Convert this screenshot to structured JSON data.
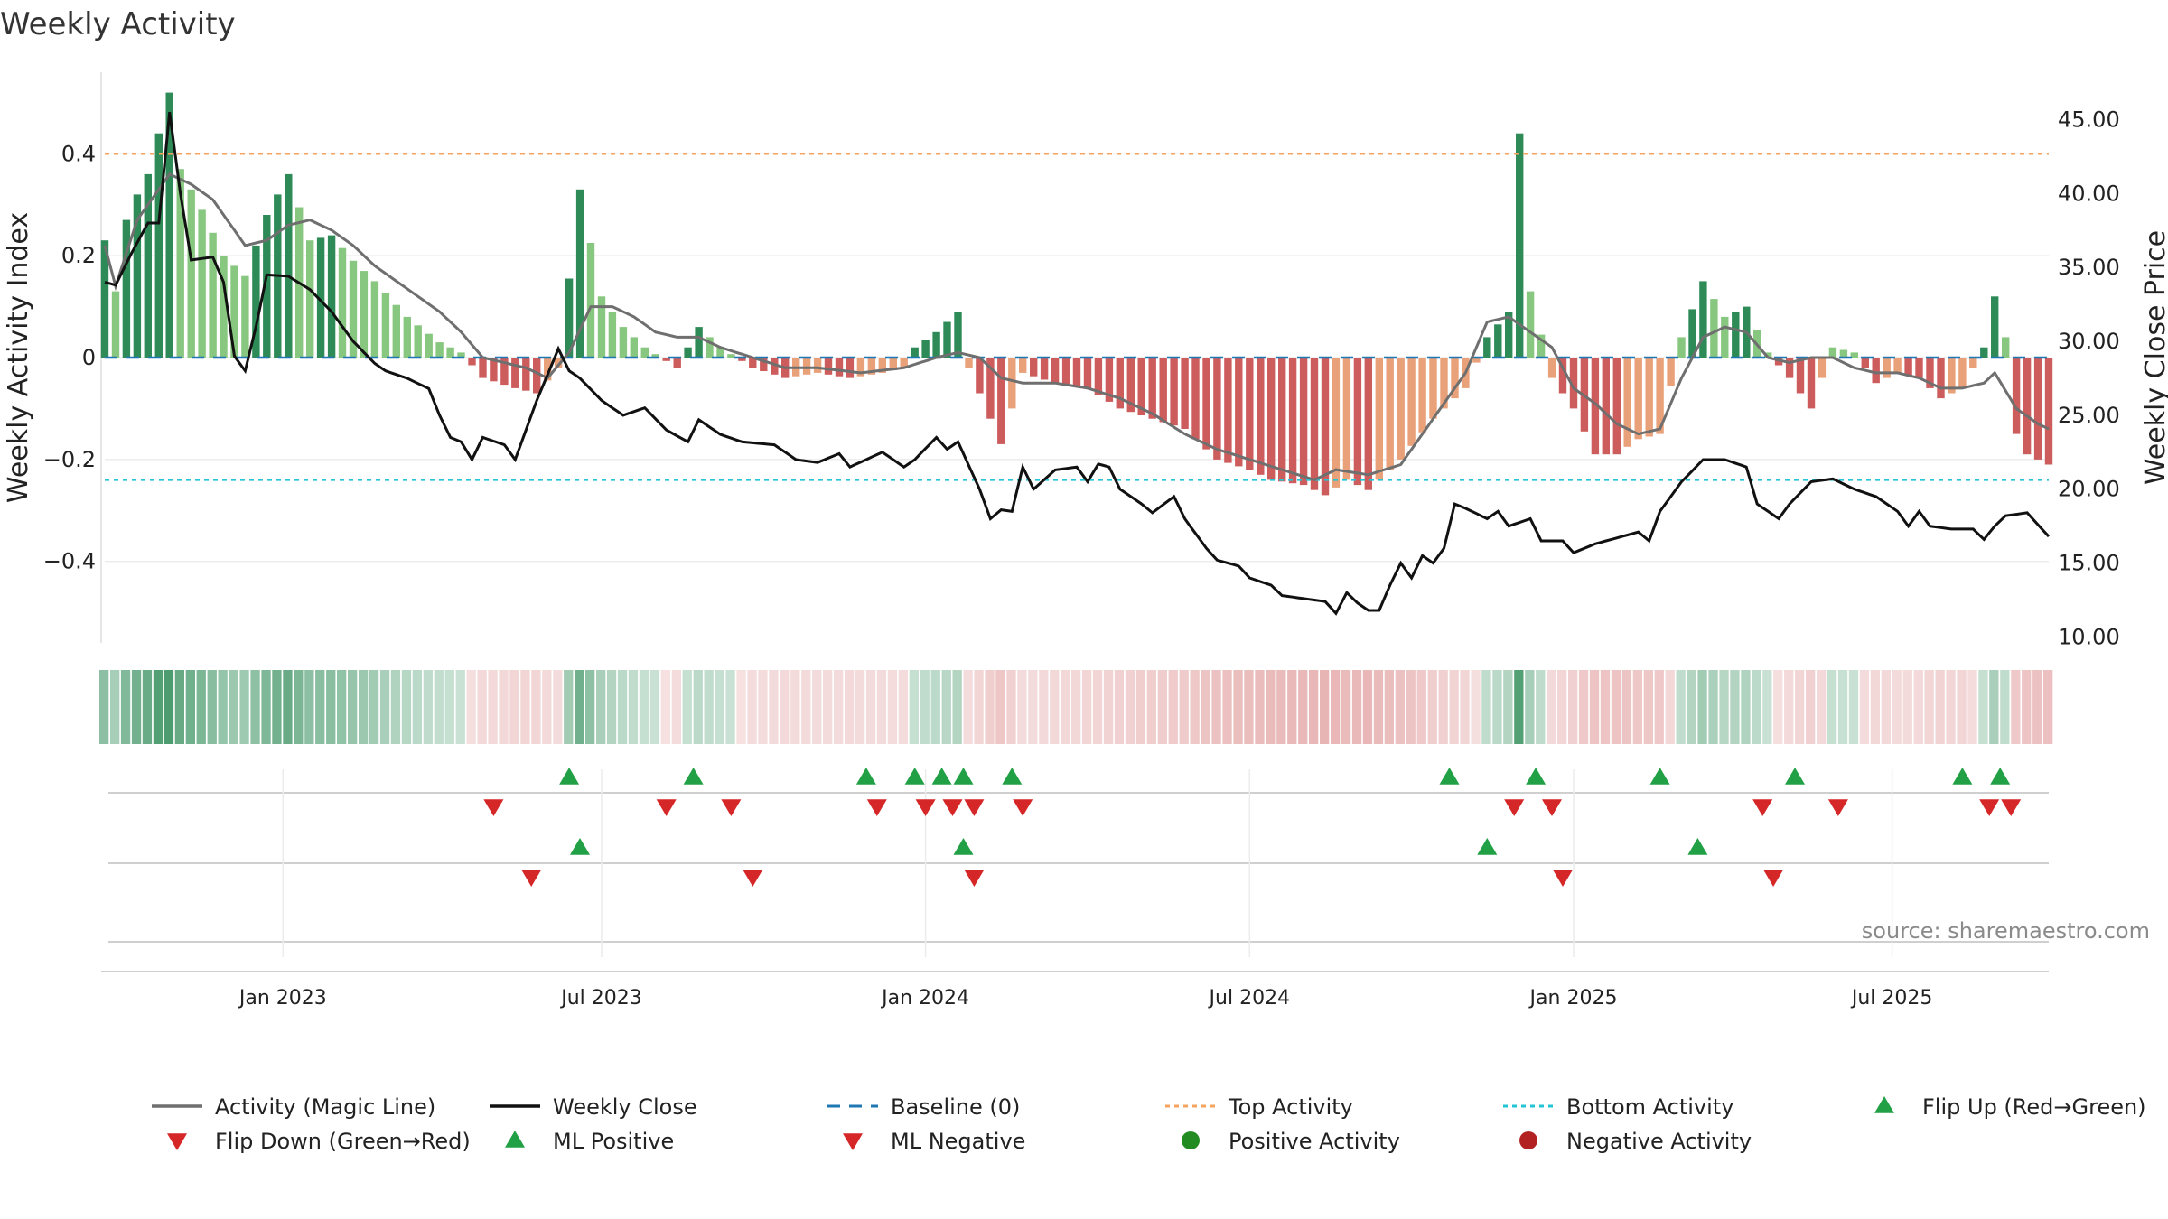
{
  "chart_data": {
    "type": "bar+line",
    "title": "Weekly Activity",
    "ylabel_left": "Weekly Activity Index",
    "ylabel_right": "Weekly Close Price",
    "source": "source: sharemaestro.com",
    "y_left_ticks": [
      "0.4",
      "0.2",
      "0",
      "−0.2",
      "−0.4"
    ],
    "y_left_tick_values": [
      0.4,
      0.2,
      0,
      -0.2,
      -0.4
    ],
    "y_left_range": [
      -0.56,
      0.56
    ],
    "y_right_ticks": [
      "45.00",
      "40.00",
      "35.00",
      "30.00",
      "25.00",
      "20.00",
      "15.00",
      "10.00"
    ],
    "y_right_tick_values": [
      45,
      40,
      35,
      30,
      25,
      20,
      15,
      10
    ],
    "y_right_range": [
      9.6,
      48.2
    ],
    "x_ticks": [
      "Jan 2023",
      "Jul 2023",
      "Jan 2024",
      "Jul 2024",
      "Jan 2025",
      "Jul 2025"
    ],
    "x_tick_weeks": [
      33,
      92,
      152,
      212,
      272,
      331
    ],
    "weeks": 360,
    "top_activity": 0.4,
    "bottom_activity": -0.24,
    "activity_anchors": [
      [
        0,
        0.23
      ],
      [
        2,
        0.13
      ],
      [
        4,
        0.27
      ],
      [
        6,
        0.32
      ],
      [
        8,
        0.36
      ],
      [
        12,
        0.52
      ],
      [
        14,
        0.37
      ],
      [
        18,
        0.29
      ],
      [
        22,
        0.2
      ],
      [
        26,
        0.16
      ],
      [
        30,
        0.28
      ],
      [
        34,
        0.36
      ],
      [
        38,
        0.23
      ],
      [
        42,
        0.24
      ],
      [
        46,
        0.19
      ],
      [
        50,
        0.15
      ],
      [
        56,
        0.08
      ],
      [
        62,
        0.03
      ],
      [
        66,
        0.01
      ],
      [
        70,
        -0.04
      ],
      [
        76,
        -0.06
      ],
      [
        80,
        -0.07
      ],
      [
        84,
        -0.02
      ],
      [
        88,
        0.33
      ],
      [
        92,
        0.12
      ],
      [
        96,
        0.06
      ],
      [
        100,
        0.02
      ],
      [
        106,
        -0.02
      ],
      [
        110,
        0.06
      ],
      [
        114,
        0.02
      ],
      [
        120,
        -0.02
      ],
      [
        126,
        -0.04
      ],
      [
        132,
        -0.03
      ],
      [
        138,
        -0.04
      ],
      [
        144,
        -0.03
      ],
      [
        148,
        -0.02
      ],
      [
        150,
        0.02
      ],
      [
        154,
        0.05
      ],
      [
        158,
        0.09
      ],
      [
        160,
        -0.02
      ],
      [
        164,
        -0.12
      ],
      [
        166,
        -0.17
      ],
      [
        170,
        -0.03
      ],
      [
        176,
        -0.05
      ],
      [
        182,
        -0.06
      ],
      [
        188,
        -0.1
      ],
      [
        194,
        -0.12
      ],
      [
        200,
        -0.14
      ],
      [
        206,
        -0.2
      ],
      [
        212,
        -0.22
      ],
      [
        216,
        -0.24
      ],
      [
        222,
        -0.25
      ],
      [
        226,
        -0.27
      ],
      [
        230,
        -0.24
      ],
      [
        234,
        -0.26
      ],
      [
        240,
        -0.2
      ],
      [
        246,
        -0.12
      ],
      [
        252,
        -0.06
      ],
      [
        256,
        0.04
      ],
      [
        260,
        0.09
      ],
      [
        262,
        0.44
      ],
      [
        264,
        0.13
      ],
      [
        268,
        -0.04
      ],
      [
        272,
        -0.1
      ],
      [
        276,
        -0.19
      ],
      [
        280,
        -0.19
      ],
      [
        284,
        -0.16
      ],
      [
        288,
        -0.15
      ],
      [
        292,
        0.04
      ],
      [
        296,
        0.15
      ],
      [
        300,
        0.08
      ],
      [
        304,
        0.1
      ],
      [
        308,
        0.01
      ],
      [
        312,
        -0.04
      ],
      [
        316,
        -0.1
      ],
      [
        320,
        0.02
      ],
      [
        324,
        0.01
      ],
      [
        328,
        -0.05
      ],
      [
        332,
        -0.03
      ],
      [
        336,
        -0.04
      ],
      [
        340,
        -0.08
      ],
      [
        344,
        -0.06
      ],
      [
        348,
        0.02
      ],
      [
        350,
        0.12
      ],
      [
        352,
        0.04
      ],
      [
        354,
        -0.15
      ],
      [
        356,
        -0.19
      ],
      [
        360,
        -0.21
      ]
    ],
    "magic_line_anchors": [
      [
        0,
        0.22
      ],
      [
        2,
        0.14
      ],
      [
        6,
        0.27
      ],
      [
        10,
        0.33
      ],
      [
        12,
        0.36
      ],
      [
        16,
        0.34
      ],
      [
        20,
        0.31
      ],
      [
        24,
        0.25
      ],
      [
        26,
        0.22
      ],
      [
        30,
        0.23
      ],
      [
        34,
        0.26
      ],
      [
        38,
        0.27
      ],
      [
        42,
        0.25
      ],
      [
        46,
        0.22
      ],
      [
        50,
        0.18
      ],
      [
        54,
        0.15
      ],
      [
        58,
        0.12
      ],
      [
        62,
        0.09
      ],
      [
        66,
        0.05
      ],
      [
        70,
        0.0
      ],
      [
        74,
        -0.01
      ],
      [
        78,
        -0.02
      ],
      [
        82,
        -0.04
      ],
      [
        86,
        0.01
      ],
      [
        90,
        0.1
      ],
      [
        94,
        0.1
      ],
      [
        98,
        0.08
      ],
      [
        102,
        0.05
      ],
      [
        106,
        0.04
      ],
      [
        110,
        0.04
      ],
      [
        114,
        0.02
      ],
      [
        120,
        0.0
      ],
      [
        126,
        -0.02
      ],
      [
        132,
        -0.02
      ],
      [
        140,
        -0.03
      ],
      [
        148,
        -0.02
      ],
      [
        154,
        0.0
      ],
      [
        158,
        0.01
      ],
      [
        162,
        0.0
      ],
      [
        166,
        -0.04
      ],
      [
        170,
        -0.05
      ],
      [
        176,
        -0.05
      ],
      [
        182,
        -0.06
      ],
      [
        188,
        -0.08
      ],
      [
        194,
        -0.11
      ],
      [
        200,
        -0.15
      ],
      [
        206,
        -0.18
      ],
      [
        212,
        -0.2
      ],
      [
        218,
        -0.22
      ],
      [
        224,
        -0.24
      ],
      [
        228,
        -0.22
      ],
      [
        234,
        -0.23
      ],
      [
        240,
        -0.21
      ],
      [
        246,
        -0.12
      ],
      [
        252,
        -0.03
      ],
      [
        256,
        0.07
      ],
      [
        260,
        0.08
      ],
      [
        264,
        0.05
      ],
      [
        268,
        0.02
      ],
      [
        272,
        -0.06
      ],
      [
        276,
        -0.09
      ],
      [
        280,
        -0.13
      ],
      [
        284,
        -0.15
      ],
      [
        288,
        -0.14
      ],
      [
        292,
        -0.04
      ],
      [
        296,
        0.04
      ],
      [
        300,
        0.06
      ],
      [
        304,
        0.05
      ],
      [
        308,
        0.0
      ],
      [
        312,
        -0.01
      ],
      [
        316,
        0.0
      ],
      [
        320,
        0.0
      ],
      [
        324,
        -0.02
      ],
      [
        328,
        -0.03
      ],
      [
        332,
        -0.03
      ],
      [
        336,
        -0.04
      ],
      [
        340,
        -0.06
      ],
      [
        344,
        -0.06
      ],
      [
        348,
        -0.05
      ],
      [
        350,
        -0.03
      ],
      [
        354,
        -0.1
      ],
      [
        358,
        -0.13
      ],
      [
        360,
        -0.14
      ]
    ],
    "close_anchors": [
      [
        0,
        34
      ],
      [
        2,
        33.8
      ],
      [
        5,
        36
      ],
      [
        8,
        38
      ],
      [
        10,
        38
      ],
      [
        12,
        45.5
      ],
      [
        14,
        40
      ],
      [
        16,
        35.5
      ],
      [
        20,
        35.7
      ],
      [
        22,
        34
      ],
      [
        24,
        29
      ],
      [
        26,
        28
      ],
      [
        28,
        31
      ],
      [
        30,
        34.5
      ],
      [
        34,
        34.4
      ],
      [
        38,
        33.5
      ],
      [
        42,
        32
      ],
      [
        46,
        30
      ],
      [
        50,
        28.5
      ],
      [
        52,
        28
      ],
      [
        56,
        27.5
      ],
      [
        60,
        26.8
      ],
      [
        62,
        25
      ],
      [
        64,
        23.5
      ],
      [
        66,
        23.2
      ],
      [
        68,
        22
      ],
      [
        70,
        23.5
      ],
      [
        74,
        23
      ],
      [
        76,
        22
      ],
      [
        80,
        26
      ],
      [
        84,
        29.5
      ],
      [
        86,
        28
      ],
      [
        88,
        27.5
      ],
      [
        92,
        26
      ],
      [
        96,
        25
      ],
      [
        100,
        25.5
      ],
      [
        104,
        24
      ],
      [
        108,
        23.2
      ],
      [
        110,
        24.7
      ],
      [
        114,
        23.7
      ],
      [
        118,
        23.2
      ],
      [
        124,
        23
      ],
      [
        128,
        22
      ],
      [
        132,
        21.8
      ],
      [
        136,
        22.4
      ],
      [
        138,
        21.5
      ],
      [
        144,
        22.5
      ],
      [
        148,
        21.5
      ],
      [
        150,
        22
      ],
      [
        154,
        23.5
      ],
      [
        156,
        22.7
      ],
      [
        158,
        23.2
      ],
      [
        162,
        20
      ],
      [
        164,
        18
      ],
      [
        166,
        18.6
      ],
      [
        168,
        18.5
      ],
      [
        170,
        21.5
      ],
      [
        172,
        20
      ],
      [
        176,
        21.3
      ],
      [
        180,
        21.5
      ],
      [
        182,
        20.5
      ],
      [
        184,
        21.7
      ],
      [
        186,
        21.5
      ],
      [
        188,
        20
      ],
      [
        192,
        19
      ],
      [
        194,
        18.4
      ],
      [
        198,
        19.5
      ],
      [
        200,
        18
      ],
      [
        204,
        16
      ],
      [
        206,
        15.2
      ],
      [
        210,
        14.8
      ],
      [
        212,
        14
      ],
      [
        216,
        13.5
      ],
      [
        218,
        12.8
      ],
      [
        222,
        12.6
      ],
      [
        224,
        12.5
      ],
      [
        226,
        12.4
      ],
      [
        228,
        11.6
      ],
      [
        230,
        13
      ],
      [
        232,
        12.3
      ],
      [
        234,
        11.8
      ],
      [
        236,
        11.8
      ],
      [
        238,
        13.5
      ],
      [
        240,
        15
      ],
      [
        242,
        14
      ],
      [
        244,
        15.5
      ],
      [
        246,
        15
      ],
      [
        248,
        16
      ],
      [
        250,
        19
      ],
      [
        252,
        18.7
      ],
      [
        256,
        18
      ],
      [
        258,
        18.5
      ],
      [
        260,
        17.5
      ],
      [
        264,
        18
      ],
      [
        266,
        16.5
      ],
      [
        270,
        16.5
      ],
      [
        272,
        15.7
      ],
      [
        276,
        16.3
      ],
      [
        280,
        16.7
      ],
      [
        284,
        17.1
      ],
      [
        286,
        16.5
      ],
      [
        288,
        18.5
      ],
      [
        292,
        20.5
      ],
      [
        296,
        22
      ],
      [
        300,
        22
      ],
      [
        304,
        21.5
      ],
      [
        306,
        19
      ],
      [
        310,
        18
      ],
      [
        312,
        19
      ],
      [
        316,
        20.5
      ],
      [
        320,
        20.7
      ],
      [
        324,
        20
      ],
      [
        328,
        19.5
      ],
      [
        332,
        18.5
      ],
      [
        334,
        17.5
      ],
      [
        336,
        18.5
      ],
      [
        338,
        17.5
      ],
      [
        342,
        17.3
      ],
      [
        346,
        17.3
      ],
      [
        348,
        16.6
      ],
      [
        350,
        17.5
      ],
      [
        352,
        18.2
      ],
      [
        356,
        18.4
      ],
      [
        360,
        16.8
      ]
    ],
    "flip_up_weeks": [
      86,
      109,
      141,
      150,
      155,
      159,
      168,
      249,
      265,
      288,
      313,
      344,
      351
    ],
    "flip_down_weeks": [
      72,
      104,
      116,
      143,
      152,
      157,
      161,
      170,
      261,
      268,
      307,
      321,
      349,
      353
    ],
    "ml_positive_weeks": [
      88,
      159,
      256,
      295
    ],
    "ml_negative_weeks": [
      79,
      120,
      161,
      270,
      309
    ],
    "colors": {
      "strong_green": "#2e8b57",
      "light_green": "#88c77f",
      "strong_red": "#cd5c5c",
      "light_red": "#e9a17a",
      "magic_line": "#6f6f6f",
      "close": "#111111",
      "baseline": "#1f77b4",
      "top": "#f4a460",
      "bottom": "#23c4d6",
      "marker_up": "#22a045",
      "marker_down": "#d62728",
      "positive_dot": "#228b22",
      "negative_dot": "#b22222"
    }
  },
  "legend": [
    {
      "label": "Activity (Magic Line)",
      "kind": "line",
      "color": "#6f6f6f"
    },
    {
      "label": "Weekly Close",
      "kind": "line",
      "color": "#111111"
    },
    {
      "label": "Baseline (0)",
      "kind": "dash",
      "color": "#1f77b4"
    },
    {
      "label": "Top Activity",
      "kind": "dot",
      "color": "#f4a460"
    },
    {
      "label": "Bottom Activity",
      "kind": "dot",
      "color": "#23c4d6"
    },
    {
      "label": "Flip Up (Red→Green)",
      "kind": "tri-up",
      "color": "#22a045"
    },
    {
      "label": "Flip Down (Green→Red)",
      "kind": "tri-down",
      "color": "#d62728"
    },
    {
      "label": "ML Positive",
      "kind": "tri-up",
      "color": "#22a045"
    },
    {
      "label": "ML Negative",
      "kind": "tri-down",
      "color": "#d62728"
    },
    {
      "label": "Positive Activity",
      "kind": "circle",
      "color": "#228b22"
    },
    {
      "label": "Negative Activity",
      "kind": "circle",
      "color": "#b22222"
    }
  ]
}
